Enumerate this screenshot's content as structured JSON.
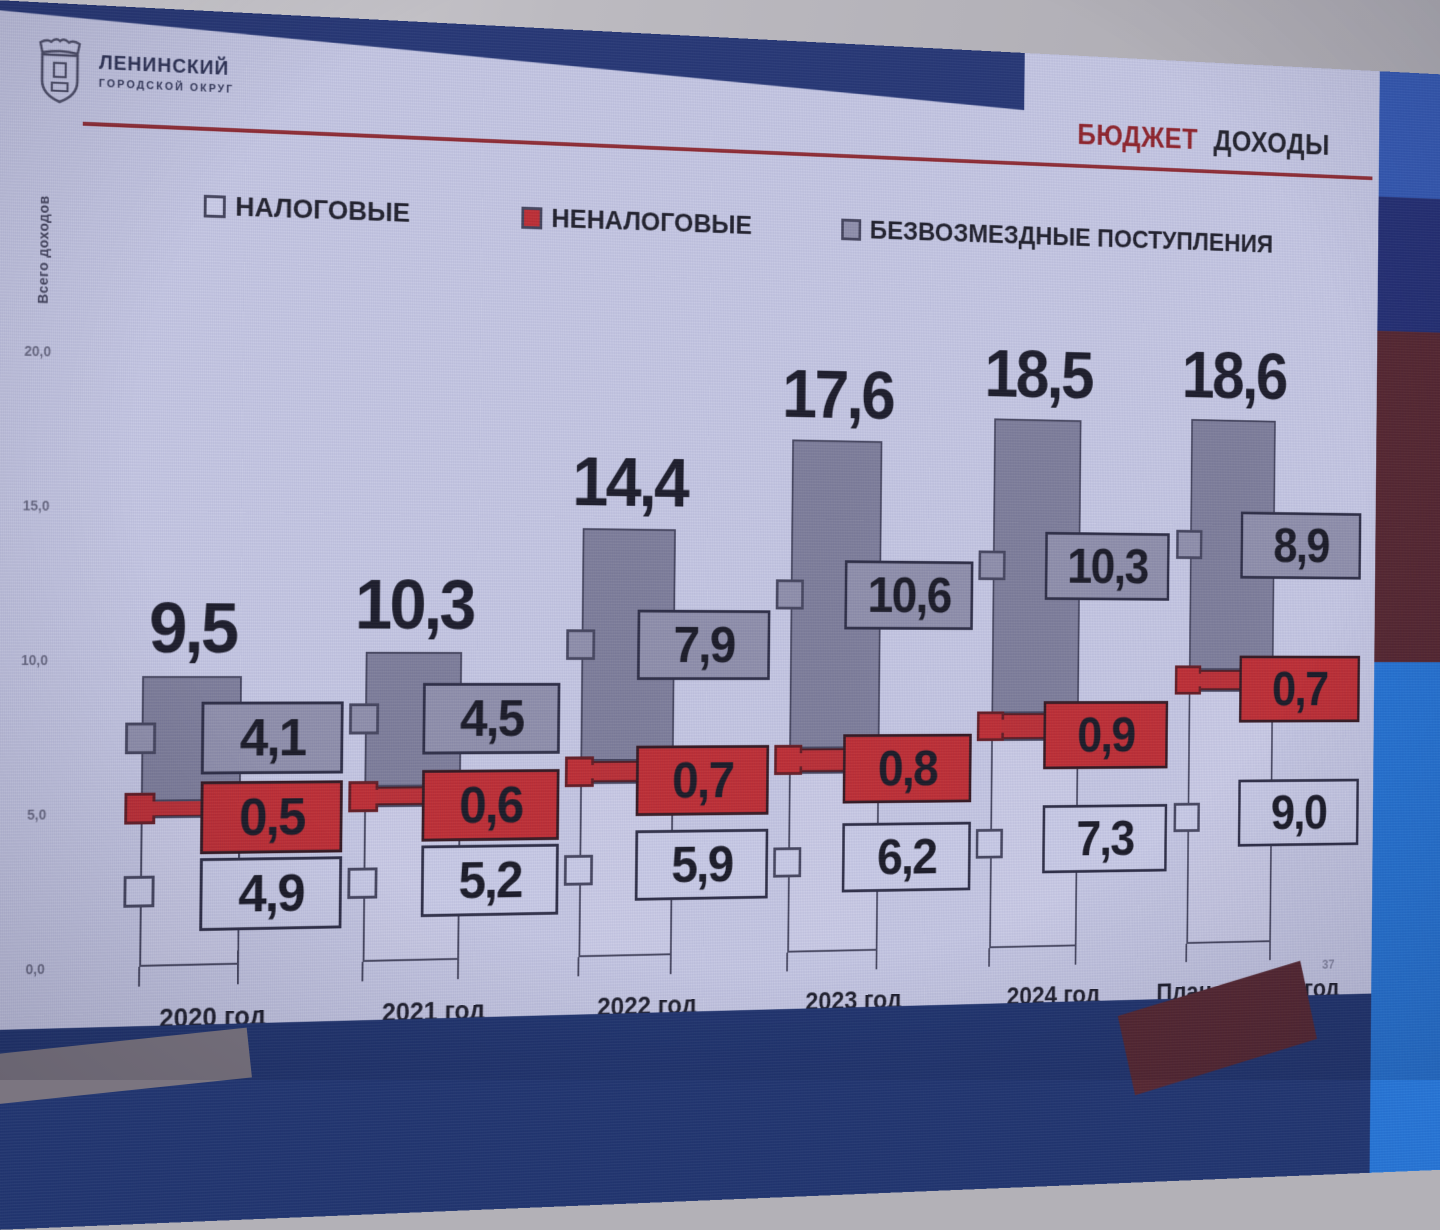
{
  "logo": {
    "line1": "ЛЕНИНСКИЙ",
    "line2": "ГОРОДСКОЙ ОКРУГ"
  },
  "header": {
    "title_accent": "БЮДЖЕТ",
    "title_rest": "ДОХОДЫ"
  },
  "legend": [
    {
      "label": "НАЛОГОВЫЕ"
    },
    {
      "label": "НЕНАЛОГОВЫЕ"
    },
    {
      "label": "БЕЗВОЗМЕЗДНЫЕ ПОСТУПЛЕНИЯ"
    }
  ],
  "page_number": "37",
  "colors": {
    "slide_bg": "#c7c9e4",
    "bar_gray": "#8d8da8",
    "bar_red": "#bf2327",
    "bar_tax": "#cbcde8",
    "title_accent": "#8c181d",
    "rule_red": "#8c2025",
    "navy": "#1b2d6d",
    "bright_blue": "#1a70d6",
    "maroon": "#4e1b22"
  },
  "chart_data": {
    "type": "bar",
    "stacked": true,
    "title": "БЮДЖЕТ ДОХОДЫ",
    "ylabel": "Всего доходов",
    "ylim": [
      0,
      20
    ],
    "yticks": [
      "20,0",
      "15,0",
      "10,0",
      "5,0",
      "0,0"
    ],
    "legend_position": "top",
    "grid": false,
    "categories": [
      "2020 год",
      "2021 год",
      "2022 год",
      "2023 год",
      "2024 год",
      "План на 2025 год"
    ],
    "totals": [
      "9,5",
      "10,3",
      "14,4",
      "17,6",
      "18,5",
      "18,6"
    ],
    "series": [
      {
        "name": "НАЛОГОВЫЕ",
        "color": "#cbcde8",
        "values": [
          4.9,
          5.2,
          5.9,
          6.2,
          7.3,
          9.0
        ],
        "labels": [
          "4,9",
          "5,2",
          "5,9",
          "6,2",
          "7,3",
          "9,0"
        ]
      },
      {
        "name": "НЕНАЛОГОВЫЕ",
        "color": "#bf2327",
        "values": [
          0.5,
          0.6,
          0.7,
          0.8,
          0.9,
          0.7
        ],
        "labels": [
          "0,5",
          "0,6",
          "0,7",
          "0,8",
          "0,9",
          "0,7"
        ]
      },
      {
        "name": "БЕЗВОЗМЕЗДНЫЕ ПОСТУПЛЕНИЯ",
        "color": "#8d8da8",
        "values": [
          4.1,
          4.5,
          7.9,
          10.6,
          10.3,
          8.9
        ],
        "labels": [
          "4,1",
          "4,5",
          "7,9",
          "10,6",
          "10,3",
          "8,9"
        ]
      }
    ]
  }
}
